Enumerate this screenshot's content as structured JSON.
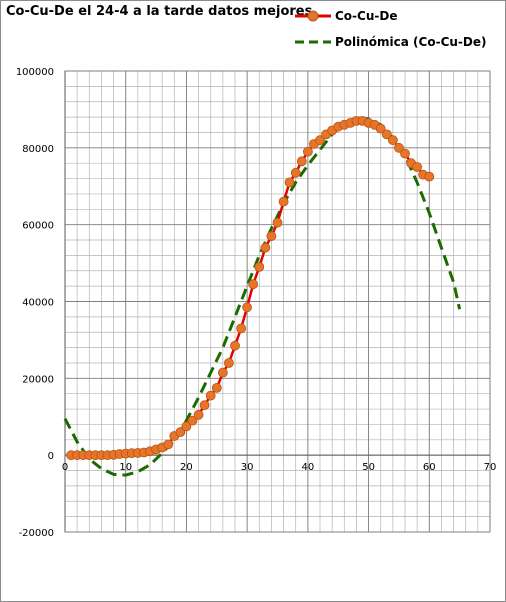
{
  "chart_data": {
    "type": "line",
    "title": "Co-Cu-De el 24-4 a la tarde datos mejores",
    "xlabel": "",
    "ylabel": "",
    "xlim": [
      0,
      70
    ],
    "ylim": [
      -20000,
      100000
    ],
    "x_ticks": [
      "0",
      "10",
      "20",
      "30",
      "40",
      "50",
      "60",
      "70"
    ],
    "y_ticks": [
      "-20000",
      "0",
      "20000",
      "40000",
      "60000",
      "80000",
      "100000"
    ],
    "grid": true,
    "legend_position": "top-right",
    "series": [
      {
        "name": "Co-Cu-De",
        "style": "line-with-markers",
        "color": "#e60000",
        "marker_color": "#e8742a",
        "x": [
          1,
          2,
          3,
          4,
          5,
          6,
          7,
          8,
          9,
          10,
          11,
          12,
          13,
          14,
          15,
          16,
          17,
          18,
          19,
          20,
          21,
          22,
          23,
          24,
          25,
          26,
          27,
          28,
          29,
          30,
          31,
          32,
          33,
          34,
          35,
          36,
          37,
          38,
          39,
          40,
          41,
          42,
          43,
          44,
          45,
          46,
          47,
          48,
          49,
          50,
          51,
          52,
          53,
          54,
          55,
          56,
          57,
          58,
          59,
          60
        ],
        "y": [
          0,
          0,
          0,
          0,
          0,
          0,
          0,
          100,
          300,
          400,
          500,
          600,
          700,
          1000,
          1500,
          2000,
          2800,
          5000,
          6000,
          7500,
          9000,
          10500,
          13000,
          15500,
          17500,
          21500,
          24000,
          28500,
          33000,
          38500,
          44500,
          49000,
          54000,
          57000,
          60500,
          66000,
          71000,
          73500,
          76500,
          79000,
          81000,
          82000,
          83500,
          84500,
          85500,
          86000,
          86500,
          87000,
          87000,
          86500,
          86000,
          85000,
          83500,
          82000,
          80000,
          78500,
          76000,
          75000,
          73000,
          72500
        ]
      },
      {
        "name": "Polinómica (Co-Cu-De)",
        "style": "dashed",
        "color": "#1a6b00",
        "x": [
          0,
          2,
          4,
          6,
          8,
          10,
          12,
          14,
          16,
          18,
          20,
          22,
          24,
          26,
          28,
          30,
          32,
          34,
          36,
          38,
          40,
          42,
          44,
          46,
          48,
          50,
          52,
          54,
          56,
          58,
          60,
          62,
          64,
          65
        ],
        "y": [
          9500,
          3500,
          -1000,
          -3500,
          -5000,
          -5200,
          -4300,
          -2500,
          500,
          4000,
          9000,
          15000,
          21500,
          28000,
          36000,
          44000,
          52000,
          59000,
          65500,
          71000,
          75500,
          79500,
          83500,
          86500,
          87800,
          87500,
          86000,
          82500,
          78000,
          71000,
          63000,
          54000,
          45000,
          38000
        ]
      }
    ]
  }
}
